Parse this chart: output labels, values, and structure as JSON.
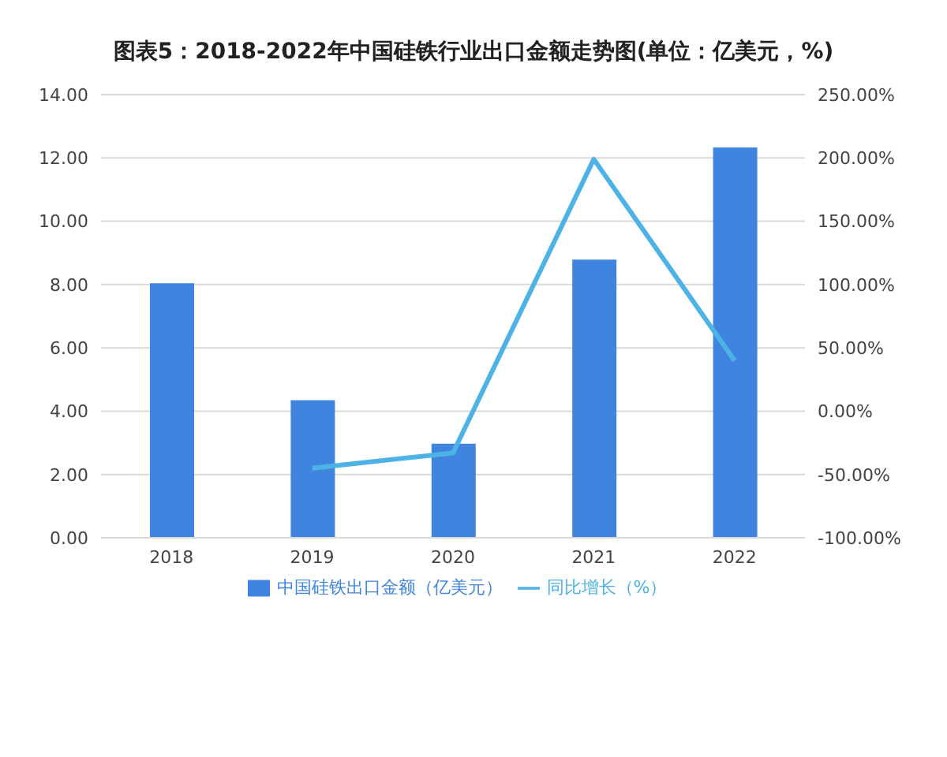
{
  "chart_data": {
    "type": "bar",
    "title": "图表5：2018-2022年中国硅铁行业出口金额走势图(单位：亿美元，%)",
    "categories": [
      "2018",
      "2019",
      "2020",
      "2021",
      "2022"
    ],
    "series": [
      {
        "name": "中国硅铁出口金额（亿美元）",
        "color": "#3f85e0",
        "values": [
          8.04,
          4.35,
          2.97,
          8.79,
          12.33
        ]
      },
      {
        "name": "同比增长（%）",
        "type": "line",
        "axis": "y2",
        "color": "#4db3e6",
        "values": [
          null,
          -45,
          -33,
          199,
          40
        ]
      }
    ],
    "ylim": [
      0,
      14
    ],
    "yticks": [
      {
        "value": 0,
        "label": "0.00"
      },
      {
        "value": 2,
        "label": "2.00"
      },
      {
        "value": 4,
        "label": "4.00"
      },
      {
        "value": 6,
        "label": "6.00"
      },
      {
        "value": 8,
        "label": "8.00"
      },
      {
        "value": 10,
        "label": "10.00"
      },
      {
        "value": 12,
        "label": "12.00"
      },
      {
        "value": 14,
        "label": "14.00"
      }
    ],
    "y2lim": [
      -100,
      250
    ],
    "y2ticks": [
      {
        "value": -100,
        "label": "-100.00%"
      },
      {
        "value": -50,
        "label": "-50.00%"
      },
      {
        "value": 0,
        "label": "0.00%"
      },
      {
        "value": 50,
        "label": "50.00%"
      },
      {
        "value": 100,
        "label": "100.00%"
      },
      {
        "value": 150,
        "label": "150.00%"
      },
      {
        "value": 200,
        "label": "200.00%"
      },
      {
        "value": 250,
        "label": "250.00%"
      }
    ],
    "grid": "y",
    "legend": "bottom",
    "marker": "none"
  }
}
